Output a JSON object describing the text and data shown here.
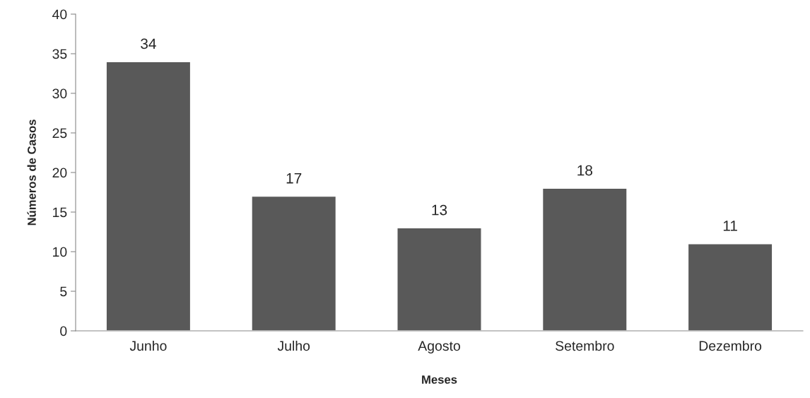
{
  "chart_data": {
    "type": "bar",
    "xlabel": "Meses",
    "ylabel": "Números de Casos",
    "categories": [
      "Junho",
      "Julho",
      "Agosto",
      "Setembro",
      "Dezembro"
    ],
    "values": [
      34,
      17,
      13,
      18,
      11
    ],
    "color": "#595959",
    "ylim": [
      0,
      40
    ],
    "yticks": [
      0,
      5,
      10,
      15,
      20,
      25,
      30,
      35,
      40
    ],
    "grid": false,
    "data_labels": true
  }
}
